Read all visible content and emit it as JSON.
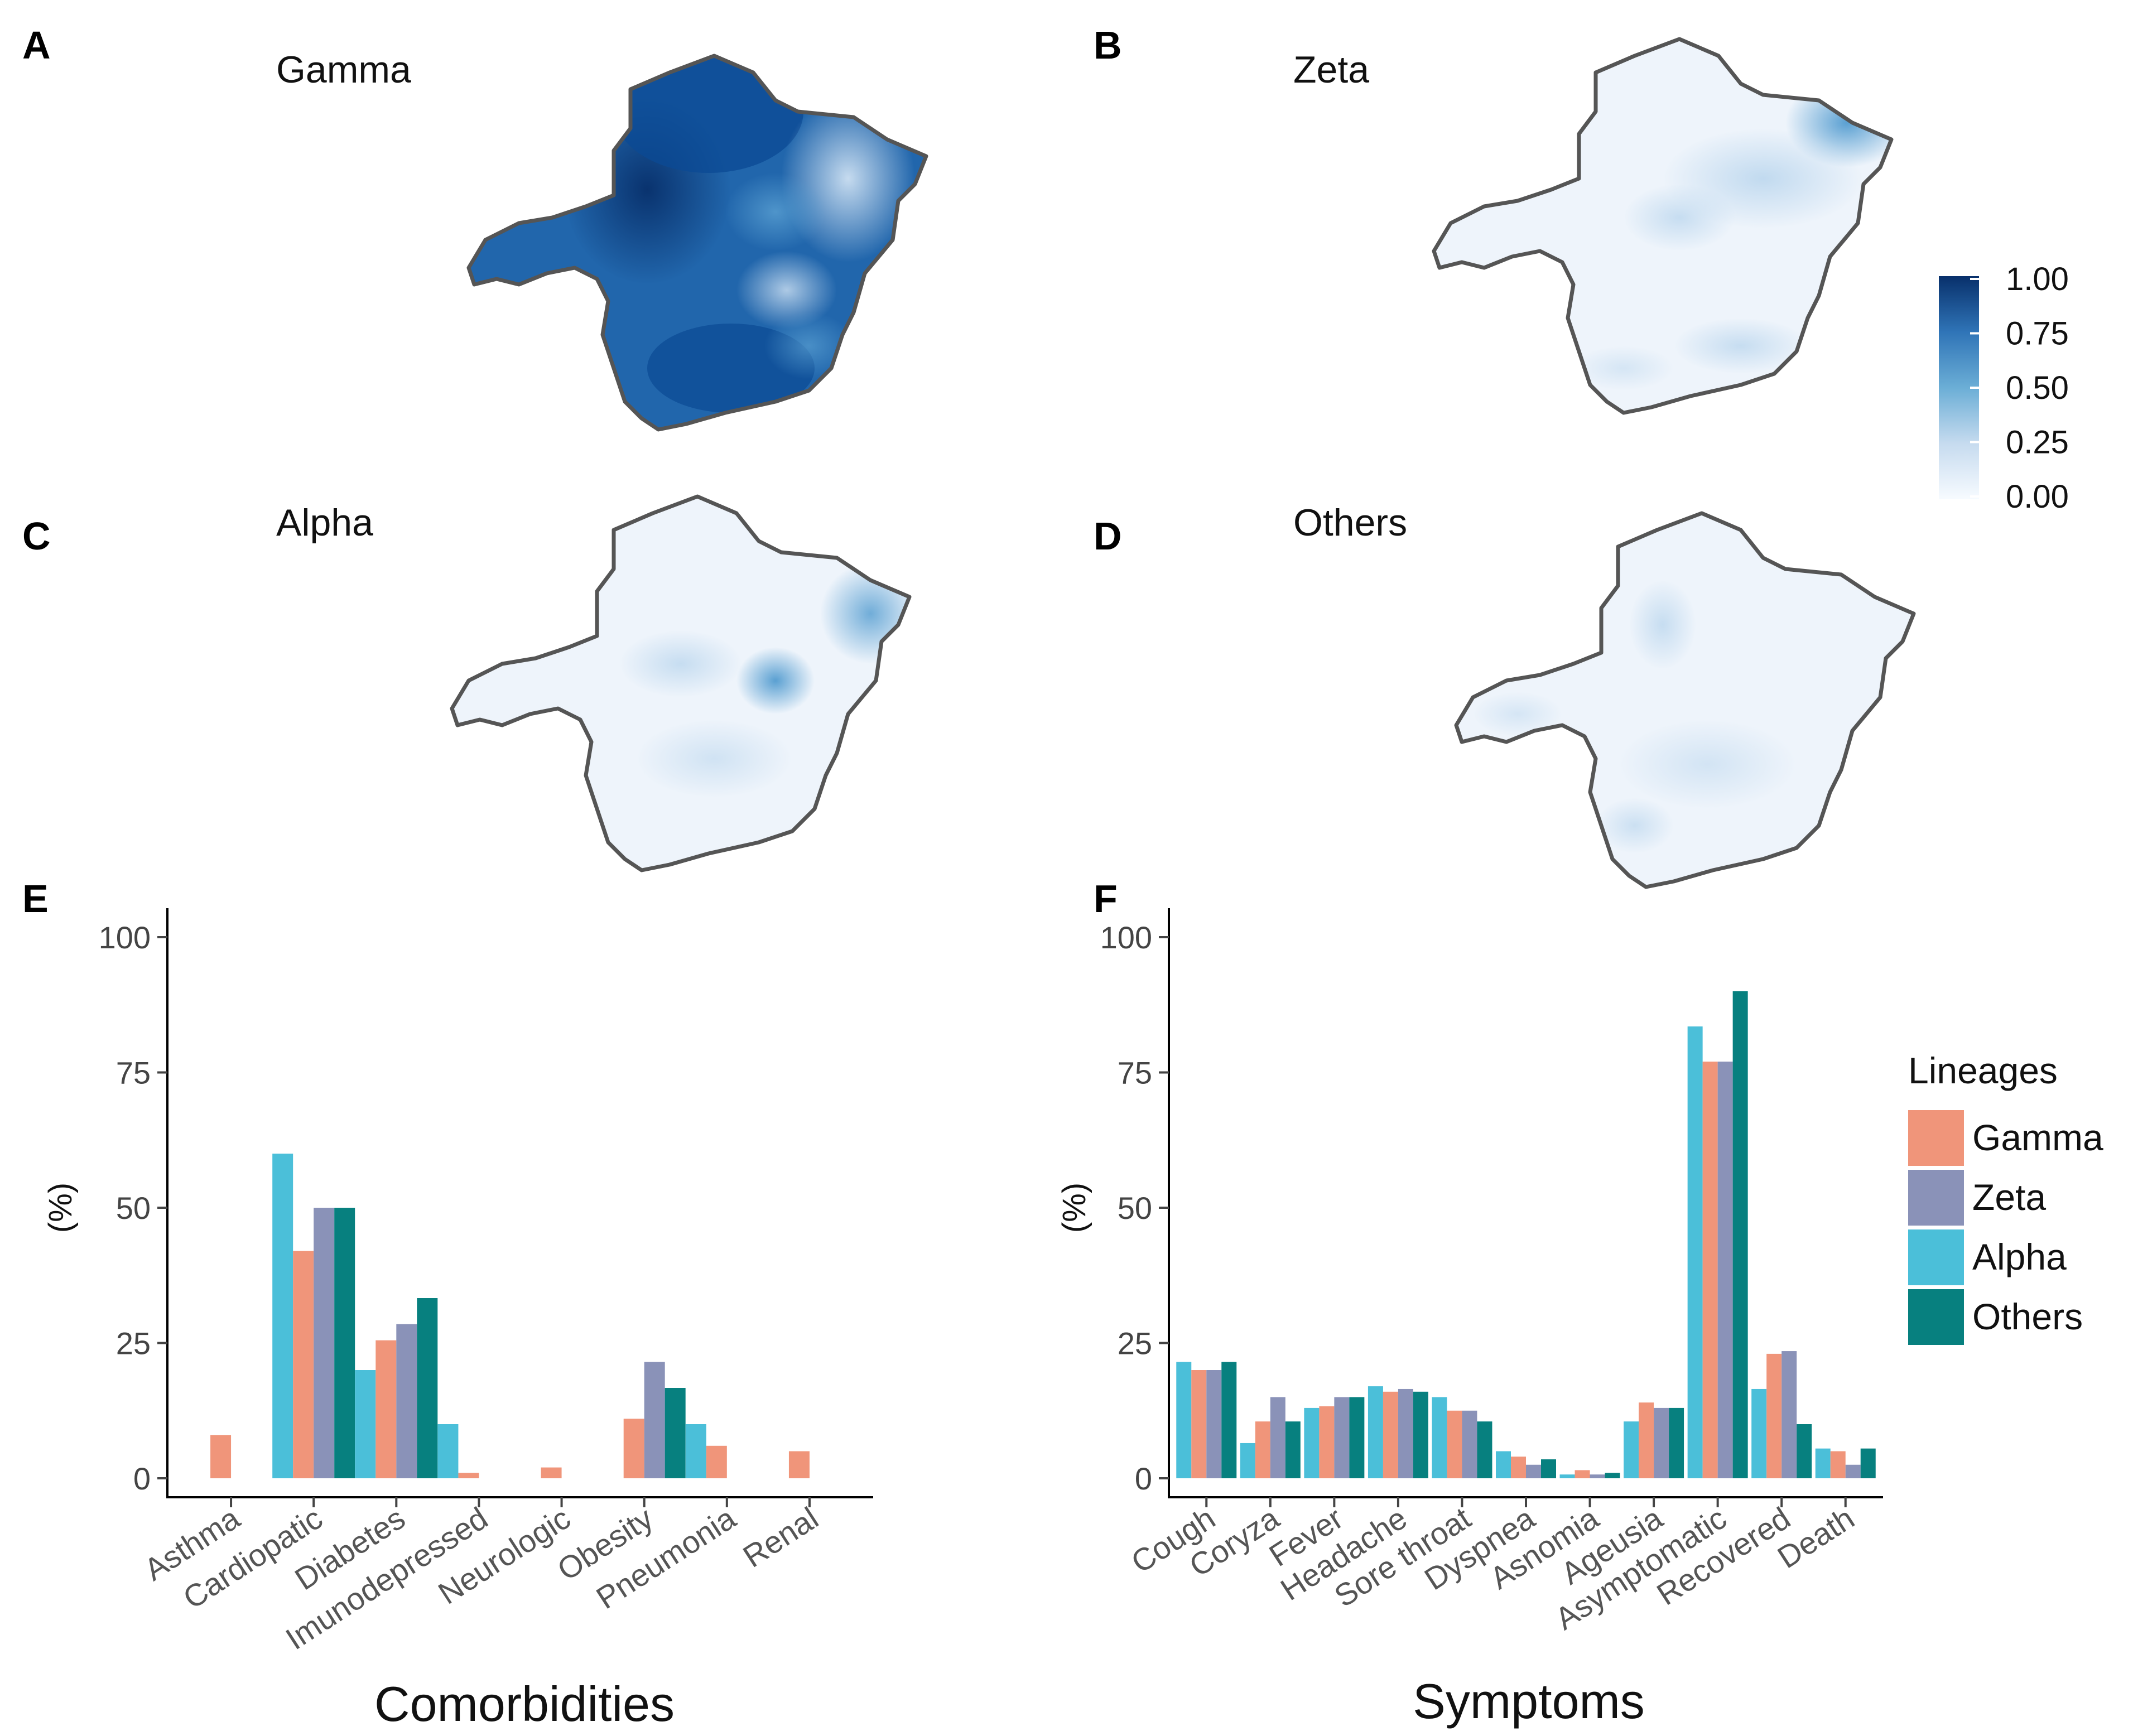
{
  "panels": {
    "A": {
      "letter": "A",
      "title": "Gamma"
    },
    "B": {
      "letter": "B",
      "title": "Zeta"
    },
    "C": {
      "letter": "C",
      "title": "Alpha"
    },
    "D": {
      "letter": "D",
      "title": "Others"
    },
    "E": {
      "letter": "E"
    },
    "F": {
      "letter": "F"
    }
  },
  "colorbar": {
    "ticks": [
      "1.00",
      "0.75",
      "0.50",
      "0.25",
      "0.00"
    ],
    "low_color": "#f7fbff",
    "high_color": "#08306b"
  },
  "legend": {
    "title": "Lineages",
    "entries": [
      {
        "name": "Gamma",
        "color": "#f0957a"
      },
      {
        "name": "Zeta",
        "color": "#8a92b8"
      },
      {
        "name": "Alpha",
        "color": "#4bbfd9"
      },
      {
        "name": "Others",
        "color": "#07807f"
      }
    ]
  },
  "chart_data": [
    {
      "type": "bar",
      "id": "E",
      "title": "",
      "xlabel": "Comorbidities",
      "ylabel": "(%)",
      "ylim": [
        0,
        100
      ],
      "yticks": [
        "0",
        "25",
        "50",
        "75",
        "100"
      ],
      "categories": [
        "Asthma",
        "Cardiopatic",
        "Diabetes",
        "Imunodepressed",
        "Neurologic",
        "Obesity",
        "Pneumonia",
        "Renal"
      ],
      "series": [
        {
          "name": "Alpha",
          "values": [
            0,
            60,
            20,
            10,
            0,
            0,
            10,
            0
          ]
        },
        {
          "name": "Gamma",
          "values": [
            8,
            42,
            25.5,
            1,
            2,
            11,
            6,
            5
          ]
        },
        {
          "name": "Zeta",
          "values": [
            0,
            50,
            28.5,
            0,
            0,
            21.5,
            0,
            0
          ]
        },
        {
          "name": "Others",
          "values": [
            0,
            50,
            33.3,
            0,
            0,
            16.7,
            0,
            0
          ]
        }
      ]
    },
    {
      "type": "bar",
      "id": "F",
      "title": "",
      "xlabel": "Symptoms",
      "ylabel": "(%)",
      "ylim": [
        0,
        100
      ],
      "yticks": [
        "0",
        "25",
        "50",
        "75",
        "100"
      ],
      "categories": [
        "Cough",
        "Coryza",
        "Fever",
        "Headache",
        "Sore throat",
        "Dyspnea",
        "Asnomia",
        "Ageusia",
        "Asymptomatic",
        "Recovered",
        "Death"
      ],
      "series": [
        {
          "name": "Alpha",
          "values": [
            21.5,
            6.5,
            13,
            17,
            15,
            5,
            0.7,
            10.5,
            83.5,
            16.5,
            5.5
          ]
        },
        {
          "name": "Gamma",
          "values": [
            20,
            10.5,
            13.3,
            16,
            12.5,
            4,
            1.5,
            14,
            77,
            23,
            5
          ]
        },
        {
          "name": "Zeta",
          "values": [
            20,
            15,
            15,
            16.5,
            12.5,
            2.5,
            0.7,
            13,
            77,
            23.5,
            2.5
          ]
        },
        {
          "name": "Others",
          "values": [
            21.5,
            10.5,
            15,
            16,
            10.5,
            3.5,
            1,
            13,
            90,
            10,
            5.5
          ]
        }
      ]
    }
  ]
}
